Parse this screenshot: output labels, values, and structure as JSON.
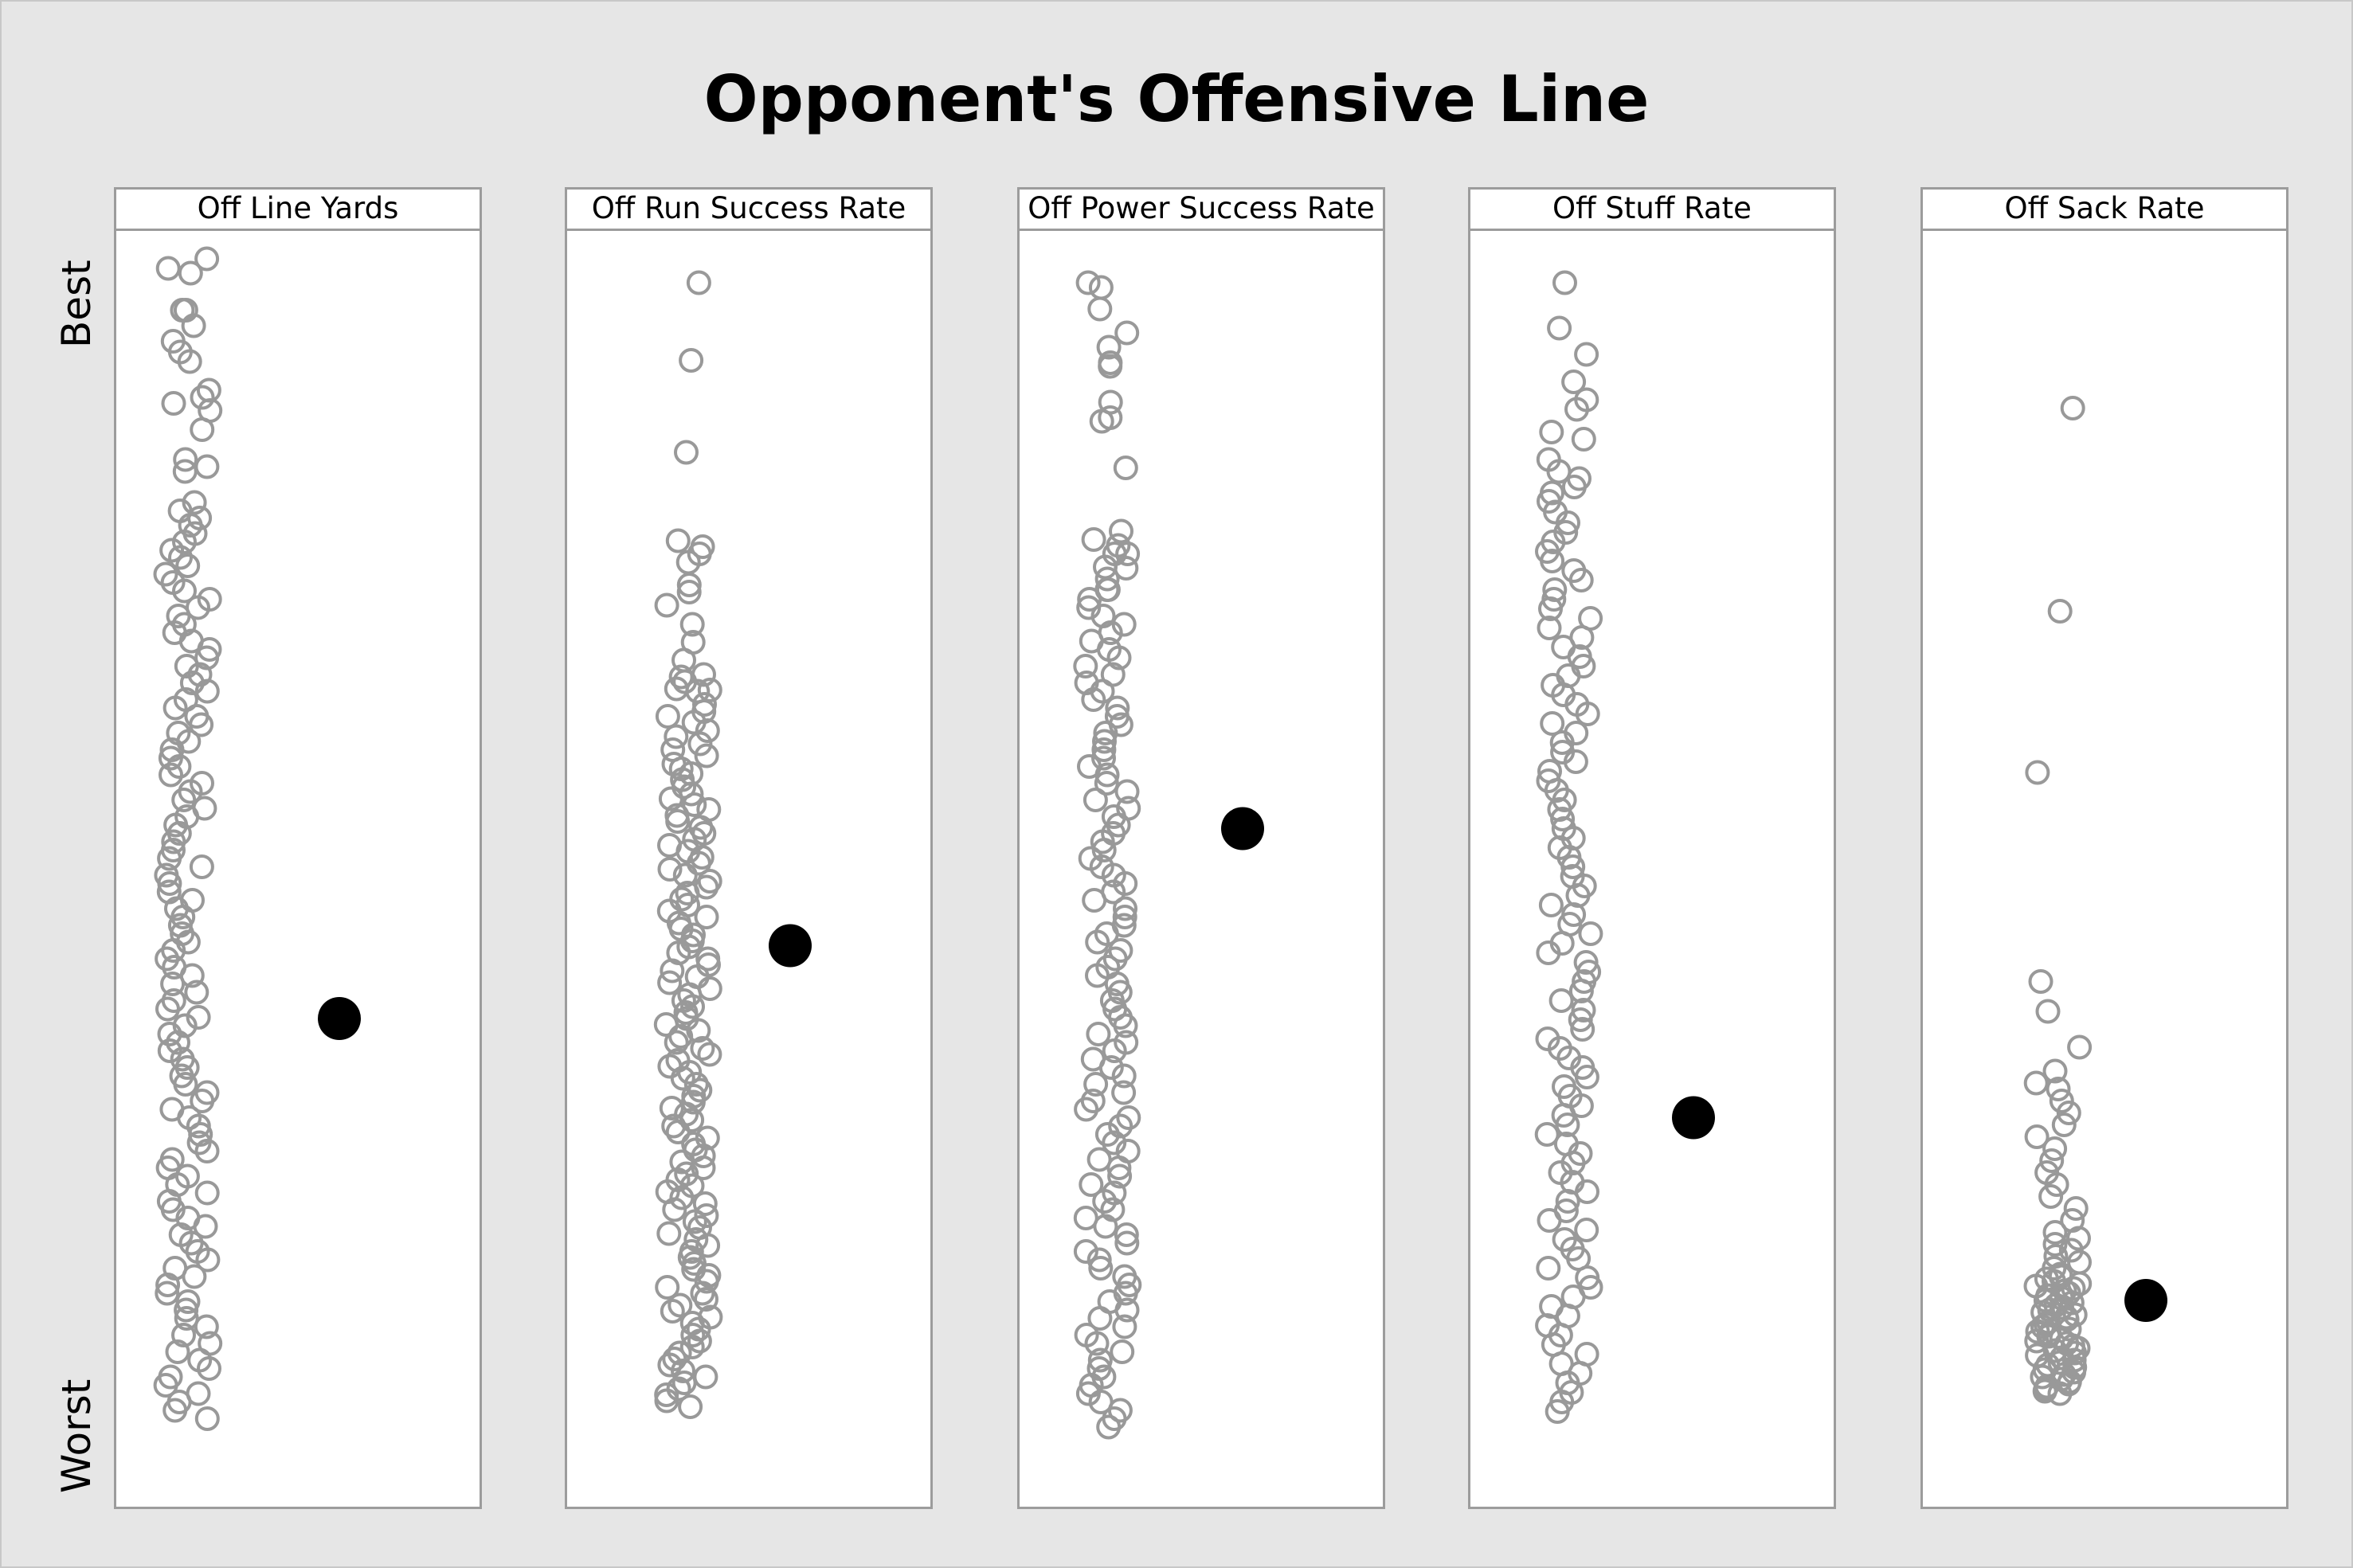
{
  "chart_data": {
    "type": "scatter",
    "title": "Opponent's Offensive Line",
    "y_axis": {
      "top_label": "Best",
      "bottom_label": "Worst",
      "ylim": [
        0,
        1
      ],
      "tick_labels": false
    },
    "grid": false,
    "legend": "none",
    "colors": {
      "others": "#999999",
      "highlight": "#000000",
      "panel_bg": "#ffffff",
      "page_bg": "#e6e6e6"
    },
    "panels": [
      {
        "name": "Off Line Yards",
        "highlight": 0.646,
        "values": [
          0.01,
          0.018,
          0.022,
          0.053,
          0.053,
          0.066,
          0.079,
          0.088,
          0.096,
          0.12,
          0.126,
          0.131,
          0.137,
          0.153,
          0.178,
          0.184,
          0.188,
          0.214,
          0.221,
          0.227,
          0.233,
          0.24,
          0.247,
          0.254,
          0.26,
          0.267,
          0.274,
          0.281,
          0.288,
          0.295,
          0.302,
          0.309,
          0.316,
          0.323,
          0.33,
          0.337,
          0.344,
          0.351,
          0.358,
          0.365,
          0.372,
          0.379,
          0.386,
          0.393,
          0.4,
          0.407,
          0.414,
          0.421,
          0.428,
          0.435,
          0.442,
          0.449,
          0.456,
          0.463,
          0.47,
          0.477,
          0.484,
          0.491,
          0.498,
          0.505,
          0.512,
          0.519,
          0.526,
          0.533,
          0.54,
          0.547,
          0.554,
          0.561,
          0.568,
          0.575,
          0.582,
          0.589,
          0.596,
          0.603,
          0.61,
          0.617,
          0.624,
          0.631,
          0.638,
          0.645,
          0.652,
          0.659,
          0.666,
          0.673,
          0.68,
          0.687,
          0.694,
          0.701,
          0.708,
          0.715,
          0.722,
          0.729,
          0.736,
          0.743,
          0.75,
          0.757,
          0.764,
          0.771,
          0.778,
          0.785,
          0.792,
          0.799,
          0.806,
          0.813,
          0.82,
          0.827,
          0.834,
          0.841,
          0.848,
          0.855,
          0.862,
          0.869,
          0.876,
          0.883,
          0.89,
          0.897,
          0.904,
          0.911,
          0.918,
          0.925,
          0.932,
          0.939,
          0.946,
          0.953,
          0.96,
          0.967,
          0.974,
          0.981
        ]
      },
      {
        "name": "Off Run Success Rate",
        "highlight": 0.585,
        "values": [
          0.03,
          0.095,
          0.172,
          0.246,
          0.251,
          0.257,
          0.264,
          0.283,
          0.289,
          0.3,
          0.316,
          0.331,
          0.346,
          0.358,
          0.36,
          0.364,
          0.37,
          0.371,
          0.372,
          0.383,
          0.389,
          0.393,
          0.398,
          0.405,
          0.41,
          0.416,
          0.421,
          0.426,
          0.433,
          0.437,
          0.441,
          0.446,
          0.452,
          0.458,
          0.462,
          0.467,
          0.471,
          0.476,
          0.481,
          0.486,
          0.491,
          0.496,
          0.501,
          0.506,
          0.511,
          0.516,
          0.521,
          0.526,
          0.531,
          0.536,
          0.541,
          0.546,
          0.551,
          0.556,
          0.561,
          0.566,
          0.571,
          0.576,
          0.581,
          0.586,
          0.591,
          0.596,
          0.601,
          0.606,
          0.611,
          0.616,
          0.621,
          0.626,
          0.631,
          0.636,
          0.641,
          0.646,
          0.651,
          0.656,
          0.661,
          0.666,
          0.671,
          0.676,
          0.681,
          0.686,
          0.691,
          0.696,
          0.701,
          0.706,
          0.711,
          0.716,
          0.721,
          0.726,
          0.731,
          0.736,
          0.741,
          0.746,
          0.751,
          0.756,
          0.761,
          0.766,
          0.771,
          0.776,
          0.781,
          0.786,
          0.791,
          0.796,
          0.801,
          0.806,
          0.811,
          0.816,
          0.821,
          0.826,
          0.831,
          0.836,
          0.841,
          0.846,
          0.851,
          0.856,
          0.861,
          0.866,
          0.871,
          0.876,
          0.881,
          0.886,
          0.891,
          0.896,
          0.901,
          0.906,
          0.911,
          0.916,
          0.921,
          0.926,
          0.931,
          0.936,
          0.941,
          0.946,
          0.951,
          0.956,
          0.961,
          0.966,
          0.971
        ]
      },
      {
        "name": "Off Power Success Rate",
        "highlight": 0.487,
        "values": [
          0.03,
          0.034,
          0.052,
          0.072,
          0.084,
          0.097,
          0.1,
          0.13,
          0.143,
          0.146,
          0.185,
          0.238,
          0.245,
          0.25,
          0.257,
          0.257,
          0.268,
          0.269,
          0.278,
          0.287,
          0.287,
          0.295,
          0.302,
          0.309,
          0.316,
          0.323,
          0.33,
          0.337,
          0.344,
          0.351,
          0.358,
          0.365,
          0.372,
          0.379,
          0.386,
          0.393,
          0.4,
          0.407,
          0.414,
          0.421,
          0.428,
          0.435,
          0.442,
          0.449,
          0.456,
          0.463,
          0.47,
          0.477,
          0.484,
          0.491,
          0.498,
          0.505,
          0.512,
          0.519,
          0.526,
          0.533,
          0.54,
          0.547,
          0.554,
          0.561,
          0.568,
          0.575,
          0.582,
          0.589,
          0.596,
          0.603,
          0.61,
          0.617,
          0.624,
          0.631,
          0.638,
          0.645,
          0.652,
          0.659,
          0.666,
          0.673,
          0.68,
          0.687,
          0.694,
          0.701,
          0.708,
          0.715,
          0.722,
          0.729,
          0.736,
          0.743,
          0.75,
          0.757,
          0.764,
          0.771,
          0.778,
          0.785,
          0.792,
          0.799,
          0.806,
          0.813,
          0.82,
          0.827,
          0.834,
          0.841,
          0.848,
          0.855,
          0.862,
          0.869,
          0.876,
          0.883,
          0.89,
          0.897,
          0.904,
          0.911,
          0.918,
          0.925,
          0.932,
          0.939,
          0.946,
          0.953,
          0.96,
          0.967,
          0.974,
          0.981,
          0.988
        ]
      },
      {
        "name": "Off Stuff Rate",
        "highlight": 0.729,
        "values": [
          0.03,
          0.068,
          0.09,
          0.113,
          0.128,
          0.136,
          0.155,
          0.161,
          0.178,
          0.188,
          0.194,
          0.201,
          0.206,
          0.213,
          0.222,
          0.231,
          0.239,
          0.247,
          0.255,
          0.263,
          0.271,
          0.279,
          0.287,
          0.295,
          0.303,
          0.311,
          0.319,
          0.327,
          0.335,
          0.343,
          0.351,
          0.359,
          0.367,
          0.375,
          0.383,
          0.391,
          0.399,
          0.407,
          0.415,
          0.423,
          0.431,
          0.439,
          0.447,
          0.455,
          0.463,
          0.471,
          0.479,
          0.487,
          0.495,
          0.503,
          0.511,
          0.519,
          0.527,
          0.535,
          0.543,
          0.551,
          0.559,
          0.567,
          0.575,
          0.583,
          0.591,
          0.599,
          0.607,
          0.615,
          0.623,
          0.631,
          0.639,
          0.647,
          0.655,
          0.663,
          0.671,
          0.679,
          0.687,
          0.695,
          0.703,
          0.711,
          0.719,
          0.727,
          0.735,
          0.743,
          0.751,
          0.759,
          0.767,
          0.775,
          0.783,
          0.791,
          0.799,
          0.807,
          0.815,
          0.823,
          0.831,
          0.839,
          0.847,
          0.855,
          0.863,
          0.871,
          0.879,
          0.887,
          0.895,
          0.903,
          0.911,
          0.919,
          0.927,
          0.935,
          0.943,
          0.951,
          0.959,
          0.967,
          0.975
        ]
      },
      {
        "name": "Off Sack Rate",
        "highlight": 0.882,
        "values": [
          0.135,
          0.305,
          0.44,
          0.615,
          0.64,
          0.67,
          0.69,
          0.7,
          0.705,
          0.715,
          0.725,
          0.735,
          0.745,
          0.755,
          0.765,
          0.775,
          0.785,
          0.795,
          0.805,
          0.815,
          0.825,
          0.83,
          0.835,
          0.84,
          0.845,
          0.85,
          0.855,
          0.86,
          0.862,
          0.864,
          0.866,
          0.868,
          0.87,
          0.872,
          0.874,
          0.876,
          0.878,
          0.88,
          0.882,
          0.884,
          0.886,
          0.888,
          0.89,
          0.892,
          0.894,
          0.896,
          0.898,
          0.9,
          0.902,
          0.904,
          0.906,
          0.908,
          0.91,
          0.912,
          0.914,
          0.916,
          0.918,
          0.92,
          0.922,
          0.924,
          0.926,
          0.928,
          0.93,
          0.932,
          0.934,
          0.936,
          0.938,
          0.94,
          0.942,
          0.944,
          0.946,
          0.948,
          0.95,
          0.952,
          0.954,
          0.956,
          0.958,
          0.96
        ]
      }
    ]
  }
}
